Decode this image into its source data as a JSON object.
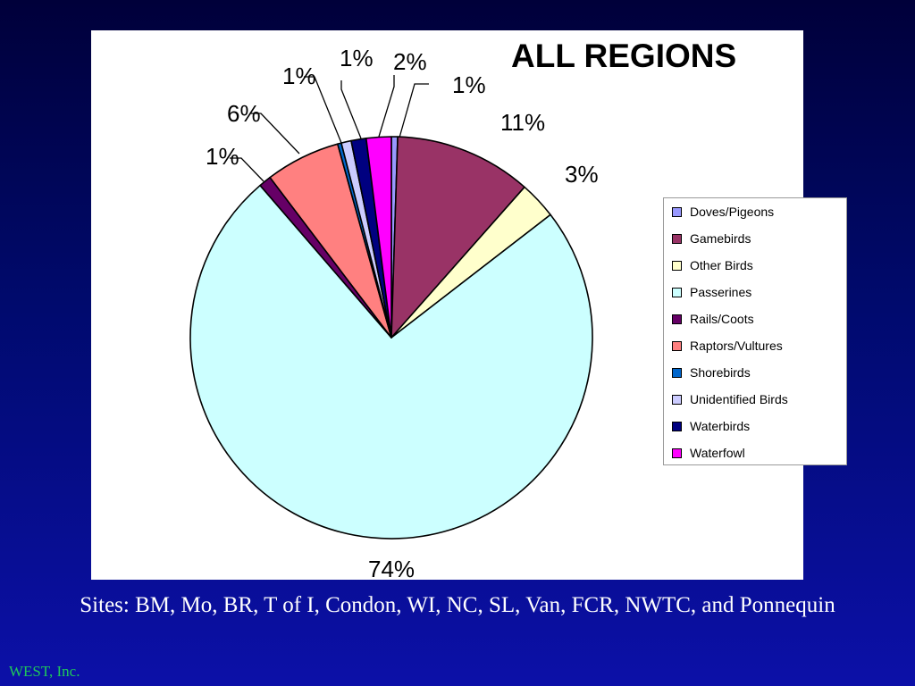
{
  "chart_data": {
    "type": "pie",
    "title": "ALL REGIONS",
    "slices": [
      {
        "label": "Doves/Pigeons",
        "value": 0.5,
        "display": "1%",
        "color": "#9999ff"
      },
      {
        "label": "Gamebirds",
        "value": 11,
        "display": "11%",
        "color": "#993366"
      },
      {
        "label": "Other Birds",
        "value": 3,
        "display": "3%",
        "color": "#ffffcc"
      },
      {
        "label": "Passerines",
        "value": 74,
        "display": "74%",
        "color": "#ccffff"
      },
      {
        "label": "Rails/Coots",
        "value": 1,
        "display": "1%",
        "color": "#660066"
      },
      {
        "label": "Raptors/Vultures",
        "value": 6,
        "display": "6%",
        "color": "#ff8080"
      },
      {
        "label": "Shorebirds",
        "value": 0.3,
        "display": "",
        "color": "#0066cc"
      },
      {
        "label": "Unidentified Birds",
        "value": 0.8,
        "display": "1%",
        "color": "#ccccff"
      },
      {
        "label": "Waterbirds",
        "value": 1.2,
        "display": "1%",
        "color": "#000080"
      },
      {
        "label": "Waterfowl",
        "value": 2,
        "display": "2%",
        "color": "#ff00ff"
      }
    ],
    "legend_position": "right"
  },
  "caption": "Sites: BM, Mo, BR, T of I, Condon, WI, NC, SL, Van, FCR, NWTC, and Ponnequin",
  "footer": "WEST, Inc."
}
